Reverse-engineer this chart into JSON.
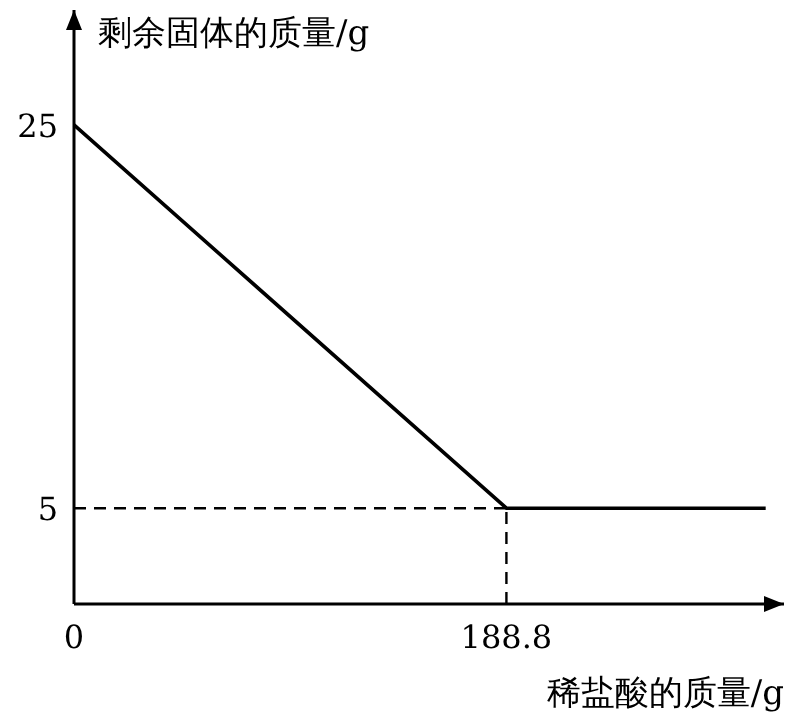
{
  "chart_data": {
    "type": "line",
    "xlabel": "稀盐酸的质量/g",
    "ylabel": "剩余固体的质量/g",
    "series": [
      {
        "color": "#000000",
        "x": [
          0,
          188.8,
          302
        ],
        "values": [
          25,
          5,
          5
        ]
      }
    ],
    "xlim": [
      0,
      310
    ],
    "ylim": [
      0,
      31
    ],
    "xticks": [
      0,
      188.8
    ],
    "yticks": [
      5,
      25
    ],
    "ref_lines": [
      {
        "axis": "x",
        "value": 188.8,
        "line_style": "dashed"
      },
      {
        "axis": "y",
        "value": 5,
        "line_style": "dashed"
      }
    ],
    "grid": false,
    "marker": "none",
    "line_style": "solid"
  }
}
